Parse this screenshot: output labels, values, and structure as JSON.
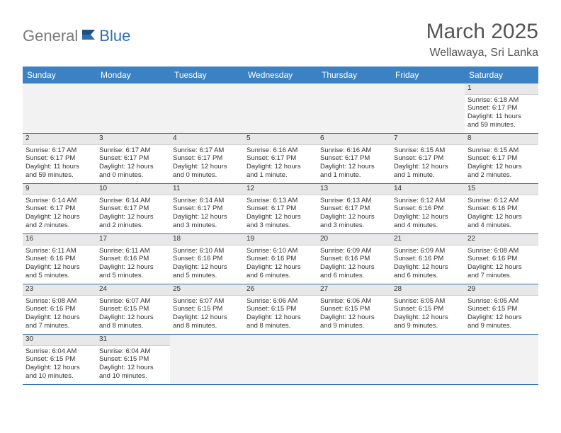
{
  "logo": {
    "gray": "General",
    "blue": "Blue"
  },
  "title": "March 2025",
  "location": "Wellawaya, Sri Lanka",
  "colors": {
    "header_bg": "#3b82c4",
    "row_border": "#2f6fb0",
    "daynum_bg": "#e8e8e8",
    "empty_bg": "#f2f2f2",
    "text": "#333333",
    "title_text": "#555555"
  },
  "day_headers": [
    "Sunday",
    "Monday",
    "Tuesday",
    "Wednesday",
    "Thursday",
    "Friday",
    "Saturday"
  ],
  "weeks": [
    [
      null,
      null,
      null,
      null,
      null,
      null,
      {
        "d": "1",
        "sr": "Sunrise: 6:18 AM",
        "ss": "Sunset: 6:17 PM",
        "dl1": "Daylight: 11 hours",
        "dl2": "and 59 minutes."
      }
    ],
    [
      {
        "d": "2",
        "sr": "Sunrise: 6:17 AM",
        "ss": "Sunset: 6:17 PM",
        "dl1": "Daylight: 11 hours",
        "dl2": "and 59 minutes."
      },
      {
        "d": "3",
        "sr": "Sunrise: 6:17 AM",
        "ss": "Sunset: 6:17 PM",
        "dl1": "Daylight: 12 hours",
        "dl2": "and 0 minutes."
      },
      {
        "d": "4",
        "sr": "Sunrise: 6:17 AM",
        "ss": "Sunset: 6:17 PM",
        "dl1": "Daylight: 12 hours",
        "dl2": "and 0 minutes."
      },
      {
        "d": "5",
        "sr": "Sunrise: 6:16 AM",
        "ss": "Sunset: 6:17 PM",
        "dl1": "Daylight: 12 hours",
        "dl2": "and 1 minute."
      },
      {
        "d": "6",
        "sr": "Sunrise: 6:16 AM",
        "ss": "Sunset: 6:17 PM",
        "dl1": "Daylight: 12 hours",
        "dl2": "and 1 minute."
      },
      {
        "d": "7",
        "sr": "Sunrise: 6:15 AM",
        "ss": "Sunset: 6:17 PM",
        "dl1": "Daylight: 12 hours",
        "dl2": "and 1 minute."
      },
      {
        "d": "8",
        "sr": "Sunrise: 6:15 AM",
        "ss": "Sunset: 6:17 PM",
        "dl1": "Daylight: 12 hours",
        "dl2": "and 2 minutes."
      }
    ],
    [
      {
        "d": "9",
        "sr": "Sunrise: 6:14 AM",
        "ss": "Sunset: 6:17 PM",
        "dl1": "Daylight: 12 hours",
        "dl2": "and 2 minutes."
      },
      {
        "d": "10",
        "sr": "Sunrise: 6:14 AM",
        "ss": "Sunset: 6:17 PM",
        "dl1": "Daylight: 12 hours",
        "dl2": "and 2 minutes."
      },
      {
        "d": "11",
        "sr": "Sunrise: 6:14 AM",
        "ss": "Sunset: 6:17 PM",
        "dl1": "Daylight: 12 hours",
        "dl2": "and 3 minutes."
      },
      {
        "d": "12",
        "sr": "Sunrise: 6:13 AM",
        "ss": "Sunset: 6:17 PM",
        "dl1": "Daylight: 12 hours",
        "dl2": "and 3 minutes."
      },
      {
        "d": "13",
        "sr": "Sunrise: 6:13 AM",
        "ss": "Sunset: 6:17 PM",
        "dl1": "Daylight: 12 hours",
        "dl2": "and 3 minutes."
      },
      {
        "d": "14",
        "sr": "Sunrise: 6:12 AM",
        "ss": "Sunset: 6:16 PM",
        "dl1": "Daylight: 12 hours",
        "dl2": "and 4 minutes."
      },
      {
        "d": "15",
        "sr": "Sunrise: 6:12 AM",
        "ss": "Sunset: 6:16 PM",
        "dl1": "Daylight: 12 hours",
        "dl2": "and 4 minutes."
      }
    ],
    [
      {
        "d": "16",
        "sr": "Sunrise: 6:11 AM",
        "ss": "Sunset: 6:16 PM",
        "dl1": "Daylight: 12 hours",
        "dl2": "and 5 minutes."
      },
      {
        "d": "17",
        "sr": "Sunrise: 6:11 AM",
        "ss": "Sunset: 6:16 PM",
        "dl1": "Daylight: 12 hours",
        "dl2": "and 5 minutes."
      },
      {
        "d": "18",
        "sr": "Sunrise: 6:10 AM",
        "ss": "Sunset: 6:16 PM",
        "dl1": "Daylight: 12 hours",
        "dl2": "and 5 minutes."
      },
      {
        "d": "19",
        "sr": "Sunrise: 6:10 AM",
        "ss": "Sunset: 6:16 PM",
        "dl1": "Daylight: 12 hours",
        "dl2": "and 6 minutes."
      },
      {
        "d": "20",
        "sr": "Sunrise: 6:09 AM",
        "ss": "Sunset: 6:16 PM",
        "dl1": "Daylight: 12 hours",
        "dl2": "and 6 minutes."
      },
      {
        "d": "21",
        "sr": "Sunrise: 6:09 AM",
        "ss": "Sunset: 6:16 PM",
        "dl1": "Daylight: 12 hours",
        "dl2": "and 6 minutes."
      },
      {
        "d": "22",
        "sr": "Sunrise: 6:08 AM",
        "ss": "Sunset: 6:16 PM",
        "dl1": "Daylight: 12 hours",
        "dl2": "and 7 minutes."
      }
    ],
    [
      {
        "d": "23",
        "sr": "Sunrise: 6:08 AM",
        "ss": "Sunset: 6:16 PM",
        "dl1": "Daylight: 12 hours",
        "dl2": "and 7 minutes."
      },
      {
        "d": "24",
        "sr": "Sunrise: 6:07 AM",
        "ss": "Sunset: 6:15 PM",
        "dl1": "Daylight: 12 hours",
        "dl2": "and 8 minutes."
      },
      {
        "d": "25",
        "sr": "Sunrise: 6:07 AM",
        "ss": "Sunset: 6:15 PM",
        "dl1": "Daylight: 12 hours",
        "dl2": "and 8 minutes."
      },
      {
        "d": "26",
        "sr": "Sunrise: 6:06 AM",
        "ss": "Sunset: 6:15 PM",
        "dl1": "Daylight: 12 hours",
        "dl2": "and 8 minutes."
      },
      {
        "d": "27",
        "sr": "Sunrise: 6:06 AM",
        "ss": "Sunset: 6:15 PM",
        "dl1": "Daylight: 12 hours",
        "dl2": "and 9 minutes."
      },
      {
        "d": "28",
        "sr": "Sunrise: 6:05 AM",
        "ss": "Sunset: 6:15 PM",
        "dl1": "Daylight: 12 hours",
        "dl2": "and 9 minutes."
      },
      {
        "d": "29",
        "sr": "Sunrise: 6:05 AM",
        "ss": "Sunset: 6:15 PM",
        "dl1": "Daylight: 12 hours",
        "dl2": "and 9 minutes."
      }
    ],
    [
      {
        "d": "30",
        "sr": "Sunrise: 6:04 AM",
        "ss": "Sunset: 6:15 PM",
        "dl1": "Daylight: 12 hours",
        "dl2": "and 10 minutes."
      },
      {
        "d": "31",
        "sr": "Sunrise: 6:04 AM",
        "ss": "Sunset: 6:15 PM",
        "dl1": "Daylight: 12 hours",
        "dl2": "and 10 minutes."
      },
      null,
      null,
      null,
      null,
      null
    ]
  ]
}
